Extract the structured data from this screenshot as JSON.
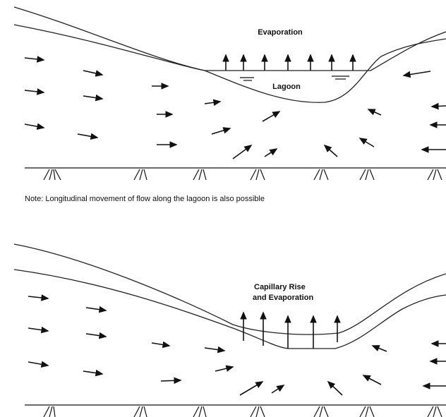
{
  "top": {
    "evaporation_label": "Evaporation",
    "lagoon_label": "Lagoon"
  },
  "note": "Note: Longitudinal movement of flow along the lagoon is also possible",
  "bottom": {
    "label_line1": "Capillary Rise",
    "label_line2": "and Evaporation"
  }
}
